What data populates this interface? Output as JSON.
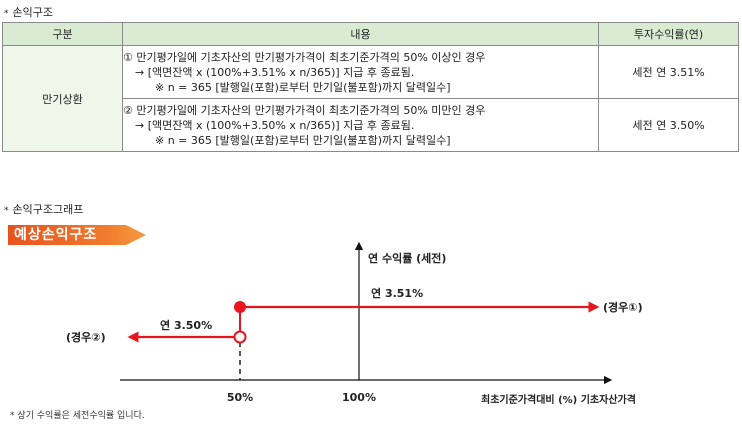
{
  "section1": {
    "mark": "*",
    "title": "손익구조"
  },
  "table": {
    "headers": [
      "구분",
      "내용",
      "투자수익률(연)"
    ],
    "category": "만기상환",
    "rows": [
      {
        "line1": "① 만기평가일에 기초자산의 만기평가가격이 최초기준가격의 50% 이상인 경우",
        "line2": "→ [액면잔액 x (100%+3.51% x n/365)] 지급 후 종료됨.",
        "line3": "※ n = 365 [발행일(포함)로부터 만기일(불포함)까지 달력일수]",
        "rate": "세전 연 3.51%"
      },
      {
        "line1": "② 만기평가일에 기초자산의 만기평가가격이 최초기준가격의 50% 미만인 경우",
        "line2": "→ [액면잔액 x (100%+3.50% x n/365)] 지급 후 종료됨.",
        "line3": "※ n = 365 [발행일(포함)로부터 만기일(불포함)까지 달력일수]",
        "rate": "세전 연 3.50%"
      }
    ]
  },
  "section2": {
    "mark": "*",
    "title": "손익구조그래프"
  },
  "banner": "예상손익구조",
  "graph": {
    "y_axis_label": "연 수익률 (세전)",
    "x_axis_label": "최초기준가격대비 (%) 기초자산가격",
    "tick_labels": [
      "50%",
      "100%"
    ],
    "case1_label": "(경우①)",
    "case2_label": "(경우②)",
    "rate1_label": "연 3.51%",
    "rate2_label": "연 3.50%",
    "line_color": "#e8141e"
  },
  "footnote": "* 상기 수익률은 세전수익률 입니다."
}
